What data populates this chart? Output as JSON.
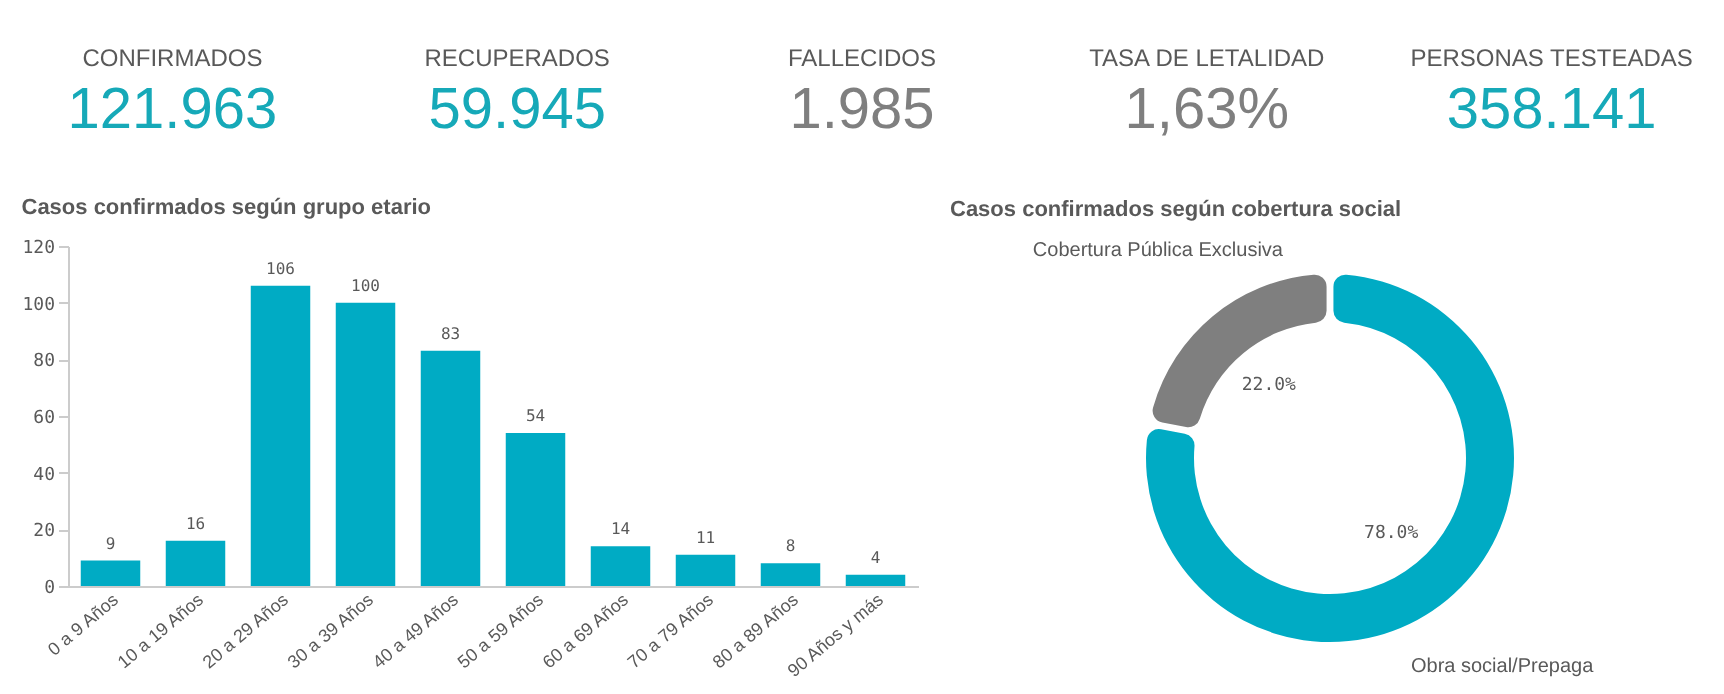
{
  "chart_data": [
    {
      "type": "other",
      "annotations": [
        "CONFIRMADOS",
        "121.963",
        "RECUPERADOS",
        "59.945",
        "FALLECIDOS",
        "1.985",
        "TASA DE LETALIDAD",
        "1,63%",
        "PERSONAS TESTEADAS",
        "358.141"
      ]
    },
    {
      "type": "bar",
      "title": "Casos confirmados según grupo etario",
      "categories": [
        "0 a 9 Años",
        "10 a 19 Años",
        "20 a 29 Años",
        "30 a 39 Años",
        "40 a 49 Años",
        "50 a 59 Años",
        "60 a 69 Años",
        "70 a 79 Años",
        "80 a 89 Años",
        "90 Años y más"
      ],
      "values": [
        9,
        16,
        106,
        100,
        83,
        54,
        14,
        11,
        8,
        4
      ],
      "color": "#00abc4",
      "ylim": [
        0,
        120
      ],
      "yticks": [
        0,
        20,
        40,
        60,
        80,
        100,
        120
      ],
      "grid": false,
      "data_labels": true
    },
    {
      "type": "donut",
      "title": "Casos confirmados según cobertura social",
      "categories": [
        "Obra social/Prepaga",
        "Cobertura Pública Exclusiva"
      ],
      "values": [
        78.0,
        22.0
      ],
      "colors": [
        "#00abc4",
        "#7f7f7f"
      ],
      "value_labels": [
        "78.0%",
        "22.0%"
      ]
    }
  ]
}
